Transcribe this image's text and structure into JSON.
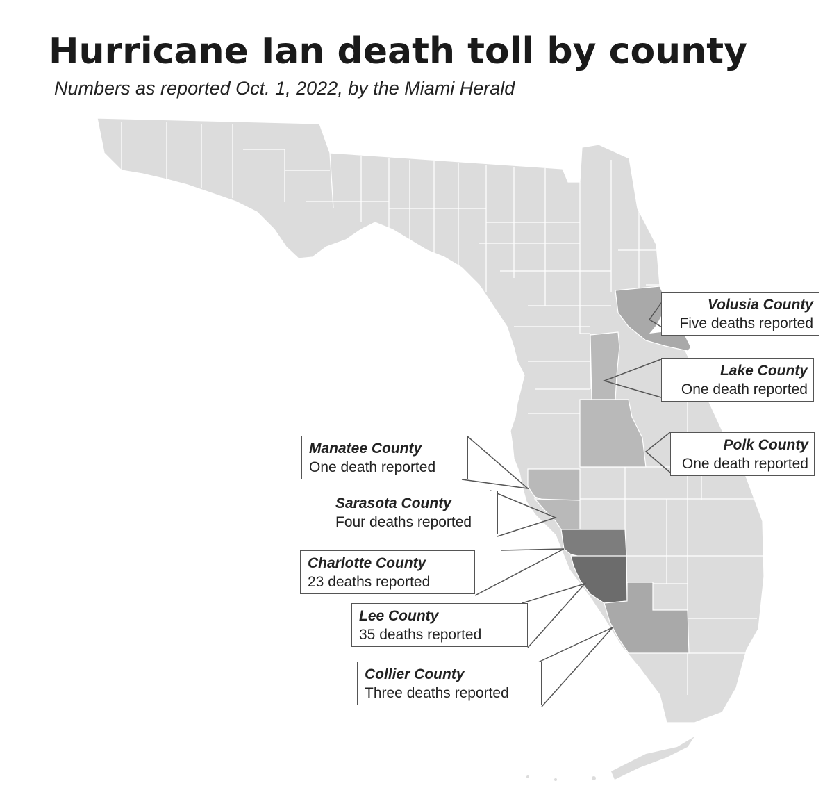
{
  "header": {
    "title": "Hurricane Ian death toll by county",
    "subtitle": "Numbers as reported Oct. 1, 2022, by the Miami Herald"
  },
  "colors": {
    "background": "#ffffff",
    "base_county": "#dcdcdc",
    "low_toll": "#b9b9b9",
    "medium_toll": "#a9a9a9",
    "high_toll": "#7d7d7d",
    "highest_toll": "#6c6c6c",
    "border": "#ffffff",
    "callout_border": "#555555"
  },
  "counties": [
    {
      "name": "Volusia County",
      "deaths_text": "Five deaths reported",
      "deaths": 5
    },
    {
      "name": "Lake County",
      "deaths_text": "One death reported",
      "deaths": 1
    },
    {
      "name": "Polk County",
      "deaths_text": "One death reported",
      "deaths": 1
    },
    {
      "name": "Manatee County",
      "deaths_text": "One death reported",
      "deaths": 1
    },
    {
      "name": "Sarasota County",
      "deaths_text": "Four deaths reported",
      "deaths": 4
    },
    {
      "name": "Charlotte County",
      "deaths_text": "23 deaths reported",
      "deaths": 23
    },
    {
      "name": "Lee County",
      "deaths_text": "35 deaths reported",
      "deaths": 35
    },
    {
      "name": "Collier County",
      "deaths_text": "Three deaths reported",
      "deaths": 3
    }
  ]
}
